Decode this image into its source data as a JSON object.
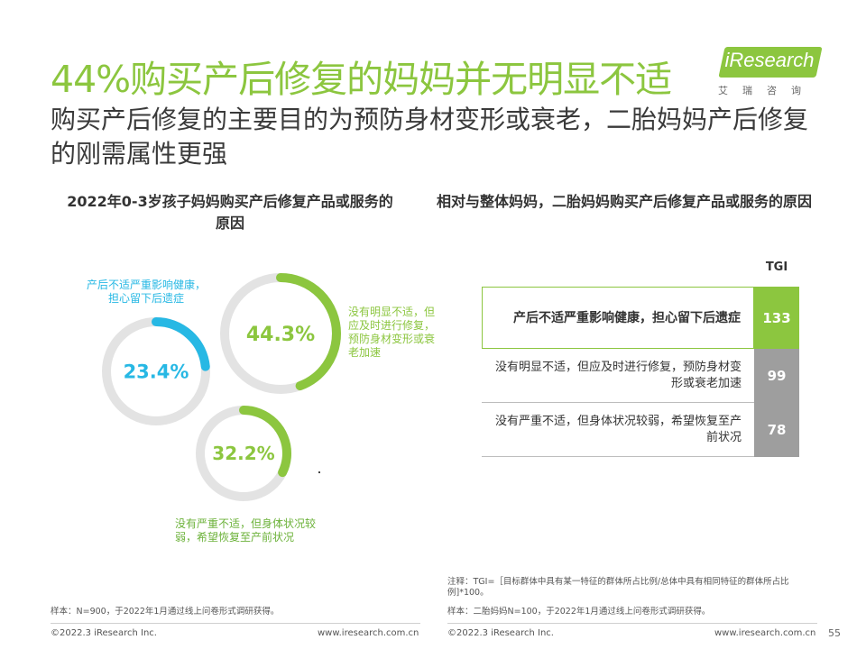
{
  "header": {
    "title": "44%购买产后修复的妈妈并无明显不适",
    "subtitle": "购买产后修复的主要目的为预防身材变形或衰老，二胎妈妈产后修复的刚需属性更强"
  },
  "logo": {
    "text": "iResearch",
    "cn": "艾瑞咨询"
  },
  "colors": {
    "green": "#8cc63f",
    "blue": "#27b8e4",
    "track": "#e3e3e3",
    "grey": "#9e9e9e"
  },
  "left_panel": {
    "title": "2022年0-3岁孩子妈妈购买产后修复产品或服务的原因",
    "sample": "样本：N=900，于2022年1月通过线上问卷形式调研获得。"
  },
  "right_panel": {
    "title": "相对与整体妈妈，二胎妈妈购买产后修复产品或服务的原因",
    "tgi_header": "TGI",
    "note": "注释：TGI=［目标群体中具有某一特征的群体所占比例/总体中具有相同特征的群体所占比例]*100。",
    "sample": "样本：二胎妈妈N=100，于2022年1月通过线上问卷形式调研获得。"
  },
  "chart_data": [
    {
      "type": "pie",
      "title": "2022年0-3岁孩子妈妈购买产后修复产品或服务的原因",
      "series": [
        {
          "label": "没有明显不适，但应及时进行修复，预防身材变形或衰老加速",
          "value": 44.3,
          "display": "44.3%",
          "color": "#8cc63f"
        },
        {
          "label": "产后不适严重影响健康，担心留下后遗症",
          "value": 23.4,
          "display": "23.4%",
          "color": "#27b8e4"
        },
        {
          "label": "没有严重不适，但身体状况较弱，希望恢复至产前状况",
          "value": 32.2,
          "display": "32.2%",
          "color": "#8cc63f"
        }
      ]
    },
    {
      "type": "table",
      "title": "相对与整体妈妈，二胎妈妈购买产后修复产品或服务的原因",
      "columns": [
        "",
        "TGI"
      ],
      "rows": [
        {
          "label": "产后不适严重影响健康，担心留下后遗症",
          "value": 133,
          "color": "#8cc63f"
        },
        {
          "label": "没有明显不适，但应及时进行修复，预防身材变形或衰老加速",
          "value": 99,
          "color": "#9e9e9e"
        },
        {
          "label": "没有严重不适，但身体状况较弱，希望恢复至产前状况",
          "value": 78,
          "color": "#9e9e9e"
        }
      ]
    }
  ],
  "footer": {
    "left_copyright": "©2022.3 iResearch Inc.",
    "left_url": "www.iresearch.com.cn",
    "right_copyright": "©2022.3 iResearch Inc.",
    "right_url": "www.iresearch.com.cn",
    "page": "55"
  }
}
